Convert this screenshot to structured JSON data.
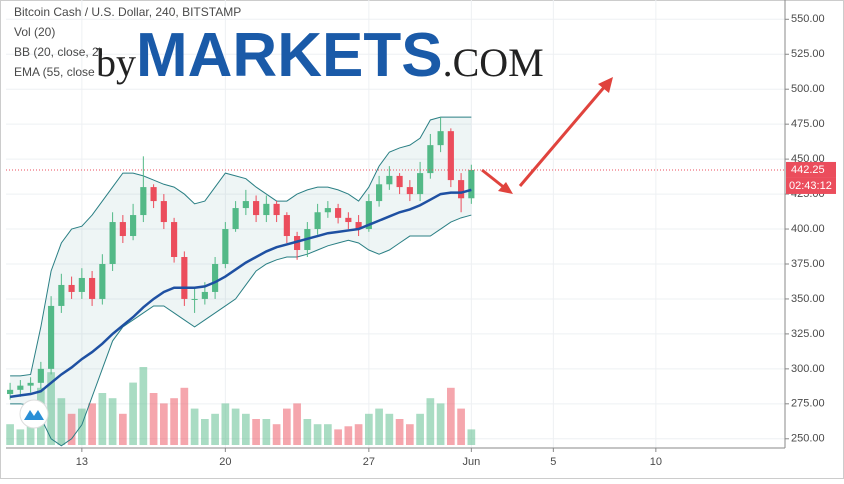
{
  "chart_data": {
    "type": "candlestick",
    "title": "Bitcoin Cash / U.S. Dollar, 240, BITSTAMP",
    "indicators": [
      "Vol (20)",
      "BB (20, close, 2)",
      "EMA (55, close"
    ],
    "watermark": {
      "prefix": "by",
      "brand": "MARKETS",
      "suffix": ".COM"
    },
    "x": [
      9.5,
      10,
      10.5,
      11,
      11.5,
      12,
      12.5,
      13,
      13.5,
      14,
      14.5,
      15,
      15.5,
      16,
      16.5,
      17,
      17.5,
      18,
      18.5,
      19,
      19.5,
      20,
      20.5,
      21,
      21.5,
      22,
      22.5,
      23,
      23.5,
      24,
      24.5,
      25,
      25.5,
      26,
      26.5,
      27,
      27.5,
      28,
      28.5,
      29,
      29.5,
      30,
      30.5,
      31,
      31.5,
      32
    ],
    "open": [
      282,
      285,
      288,
      290,
      300,
      345,
      360,
      355,
      365,
      350,
      375,
      405,
      395,
      410,
      430,
      420,
      405,
      380,
      350,
      350,
      355,
      375,
      400,
      415,
      420,
      410,
      418,
      410,
      395,
      385,
      400,
      412,
      415,
      408,
      405,
      400,
      420,
      432,
      438,
      430,
      425,
      440,
      460,
      470,
      435,
      422
    ],
    "high": [
      290,
      292,
      294,
      305,
      352,
      368,
      366,
      372,
      370,
      382,
      412,
      410,
      418,
      452,
      432,
      425,
      408,
      384,
      358,
      362,
      380,
      405,
      420,
      428,
      424,
      424,
      420,
      412,
      398,
      405,
      418,
      420,
      418,
      412,
      410,
      425,
      438,
      445,
      440,
      435,
      448,
      468,
      480,
      472,
      440,
      446
    ],
    "low": [
      278,
      280,
      283,
      286,
      296,
      340,
      350,
      350,
      345,
      346,
      370,
      390,
      392,
      405,
      415,
      400,
      376,
      345,
      340,
      346,
      350,
      372,
      398,
      410,
      405,
      405,
      405,
      390,
      378,
      380,
      396,
      408,
      404,
      400,
      395,
      398,
      416,
      428,
      425,
      420,
      420,
      436,
      455,
      430,
      412,
      418
    ],
    "close": [
      285,
      288,
      290,
      300,
      345,
      360,
      355,
      365,
      350,
      375,
      405,
      395,
      410,
      430,
      420,
      405,
      380,
      350,
      350,
      355,
      375,
      400,
      415,
      420,
      410,
      418,
      410,
      395,
      385,
      400,
      412,
      415,
      408,
      405,
      400,
      420,
      432,
      438,
      430,
      425,
      440,
      460,
      470,
      435,
      422,
      442.25
    ],
    "volume": [
      20,
      15,
      18,
      55,
      70,
      45,
      30,
      35,
      40,
      50,
      45,
      30,
      60,
      75,
      50,
      40,
      45,
      55,
      35,
      25,
      30,
      40,
      35,
      30,
      25,
      25,
      20,
      35,
      40,
      25,
      20,
      20,
      15,
      18,
      20,
      30,
      35,
      30,
      25,
      20,
      30,
      45,
      40,
      55,
      35,
      15
    ],
    "ema": [
      280,
      281,
      282,
      284,
      290,
      296,
      301,
      307,
      312,
      318,
      325,
      331,
      337,
      344,
      350,
      355,
      358,
      358,
      358,
      359,
      362,
      366,
      371,
      376,
      380,
      384,
      387,
      389,
      391,
      393,
      395,
      397,
      398,
      399,
      400,
      403,
      406,
      409,
      412,
      414,
      417,
      421,
      425,
      426,
      426,
      428
    ],
    "bb_upper": [
      295,
      295,
      296,
      330,
      370,
      390,
      400,
      402,
      410,
      420,
      430,
      440,
      440,
      438,
      435,
      432,
      430,
      425,
      418,
      420,
      430,
      440,
      438,
      436,
      430,
      425,
      420,
      420,
      425,
      428,
      430,
      430,
      428,
      425,
      420,
      430,
      445,
      455,
      458,
      460,
      465,
      478,
      480,
      480,
      480,
      480
    ],
    "bb_lower": [
      275,
      275,
      274,
      265,
      250,
      245,
      250,
      260,
      280,
      300,
      320,
      330,
      335,
      340,
      345,
      345,
      340,
      335,
      330,
      335,
      340,
      345,
      350,
      360,
      370,
      375,
      378,
      380,
      380,
      382,
      385,
      388,
      390,
      392,
      390,
      385,
      382,
      385,
      390,
      395,
      395,
      395,
      400,
      405,
      408,
      410
    ],
    "up_color": "#53b987",
    "down_color": "#eb4d5c",
    "ema_color": "#1e50a2",
    "bb_color": "#2a7f84",
    "last_price": 442.25,
    "countdown": "02:43:12",
    "xlim": [
      9.3,
      47.3
    ],
    "xticks": [
      13,
      20,
      27,
      {
        "value": 32,
        "label": "Jun"
      },
      {
        "value": 36,
        "label": "5"
      },
      {
        "value": 41,
        "label": "10"
      }
    ],
    "ylim": [
      243.4,
      563.8
    ],
    "yticks": [
      {
        "value": 250,
        "label": "250.00"
      },
      {
        "value": 275,
        "label": "275.00"
      },
      {
        "value": 300,
        "label": "300.00"
      },
      {
        "value": 325,
        "label": "325.00"
      },
      {
        "value": 350,
        "label": "350.00"
      },
      {
        "value": 375,
        "label": "375.00"
      },
      {
        "value": 400,
        "label": "400.00"
      },
      {
        "value": 425,
        "label": "425.00"
      },
      {
        "value": 450,
        "label": "450.00"
      },
      {
        "value": 475,
        "label": "475.00"
      },
      {
        "value": 500,
        "label": "500.00"
      },
      {
        "value": 525,
        "label": "525.00"
      },
      {
        "value": 550,
        "label": "550.00"
      }
    ],
    "grid": true
  }
}
